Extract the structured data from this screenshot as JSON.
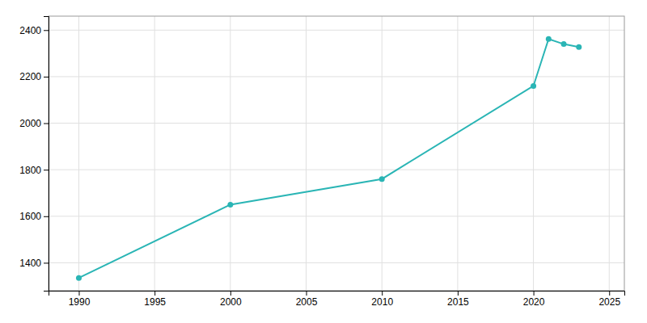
{
  "chart_data": {
    "type": "line",
    "x": [
      1990,
      2000,
      2010,
      2020,
      2021,
      2022,
      2023
    ],
    "values": [
      1335,
      1650,
      1760,
      2160,
      2362,
      2340,
      2327
    ],
    "color": "#2ab5b5",
    "marker": "circle",
    "xlim": [
      1988,
      2026
    ],
    "ylim": [
      1280,
      2460
    ],
    "xticks": [
      1990,
      1995,
      2000,
      2005,
      2010,
      2015,
      2020,
      2025
    ],
    "yticks": [
      1400,
      1600,
      1800,
      2000,
      2200,
      2400
    ],
    "grid": true
  }
}
